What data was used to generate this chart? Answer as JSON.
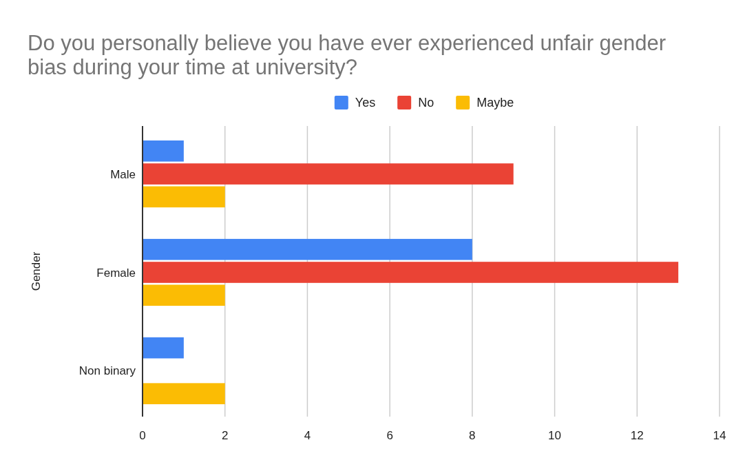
{
  "chart_data": {
    "type": "bar",
    "orientation": "horizontal",
    "title": "Do you personally believe you have ever experienced unfair gender bias during your time at university?",
    "ylabel": "Gender",
    "categories": [
      "Male",
      "Female",
      "Non binary"
    ],
    "series": [
      {
        "name": "Yes",
        "color": "#4285f4",
        "values": [
          1,
          8,
          1
        ]
      },
      {
        "name": "No",
        "color": "#ea4335",
        "values": [
          9,
          13,
          0
        ]
      },
      {
        "name": "Maybe",
        "color": "#fbbc04",
        "values": [
          2,
          2,
          2
        ]
      }
    ],
    "xlim": [
      0,
      14
    ],
    "xticks": [
      0,
      2,
      4,
      6,
      8,
      10,
      12,
      14
    ],
    "grid": "x",
    "legend": "top"
  }
}
